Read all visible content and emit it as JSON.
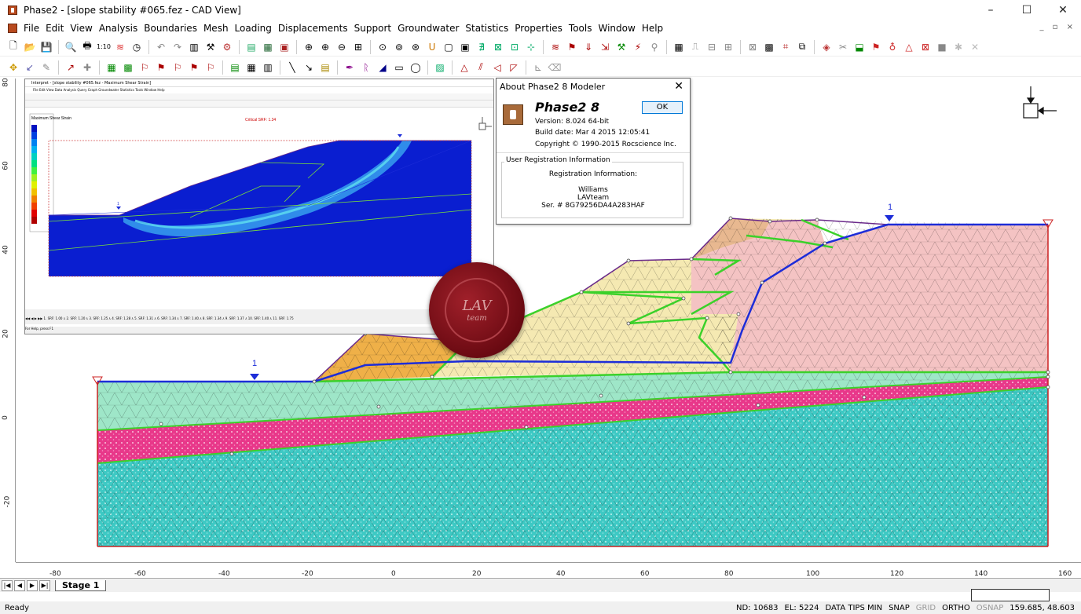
{
  "window": {
    "title": "Phase2 - [slope stability #065.fez - CAD View]",
    "minimize": "–",
    "maximize": "☐",
    "close": "✕"
  },
  "menu": [
    "File",
    "Edit",
    "View",
    "Analysis",
    "Boundaries",
    "Mesh",
    "Loading",
    "Displacements",
    "Support",
    "Groundwater",
    "Statistics",
    "Properties",
    "Tools",
    "Window",
    "Help"
  ],
  "mdi_controls": "_ ▫ ×",
  "ruler": {
    "x_ticks": [
      "-80",
      "-60",
      "-40",
      "-20",
      "0",
      "20",
      "40",
      "60",
      "80",
      "100",
      "120",
      "140",
      "160"
    ],
    "y_ticks": [
      "80",
      "60",
      "40",
      "20",
      "0",
      "-20"
    ]
  },
  "model": {
    "water_label_left": "1",
    "water_label_right": "1",
    "colors": {
      "teal": "#3ec9c4",
      "magenta": "#e8388a",
      "mint": "#9ee6c8",
      "orange": "#efb048",
      "cream": "#f5e9b2",
      "pink": "#f4c3c3",
      "water": "#1d2dd8",
      "boundary": "#3bd12a",
      "outline": "#6a2a8a"
    }
  },
  "inset": {
    "title": "Interpret - [slope stability #065.fez - Maximum Shear Strain]",
    "menu": "File  Edit  View  Data  Analysis  Query  Graph  Groundwater  Statistics  Tools  Window  Help",
    "legend_title": "Maximum Shear Strain",
    "critical_srf": "Critical SRF: 1.34",
    "tabs": "◀◀ ◀ ▶ ▶▶  1. SRF: 1.00 ⅄ 2. SRF: 1.20 ⅄ 3. SRF: 1.25 ⅄ 4. SRF: 1.28 ⅄ 5. SRF: 1.31 ⅄ 6. SRF: 1.34 ⅄ 7. SRF: 1.40 ⅄ 8. SRF: 1.34 ⅄ 9. SRF: 1.37 ⅄ 10. SRF: 1.40 ⅄ 11. SRF: 1.75",
    "status": "For Help, press F1",
    "water_label": "1"
  },
  "dialog": {
    "title": "About Phase2 8 Modeler",
    "product": "Phase2 8",
    "version": "Version: 8.024 64-bit",
    "build": "Build date: Mar  4 2015 12:05:41",
    "copyright": "Copyright © 1990-2015 Rocscience Inc.",
    "ok": "OK",
    "group_label": "User Registration Information",
    "reg_heading": "Registration Information:",
    "reg_name": "Williams",
    "reg_team": "LAVteam",
    "reg_serial": "Ser. # 8G79256DA4A283HAF"
  },
  "seal": {
    "line1": "LAV",
    "line2": "team"
  },
  "tabs": {
    "stage": "Stage 1"
  },
  "status": {
    "ready": "Ready",
    "nd": "ND: 10683",
    "el": "EL: 5224",
    "datatips": "DATA TIPS MIN",
    "snap": "SNAP",
    "grid": "GRID",
    "ortho": "ORTHO",
    "osnap": "OSNAP",
    "coords": "159.685, 48.603"
  }
}
